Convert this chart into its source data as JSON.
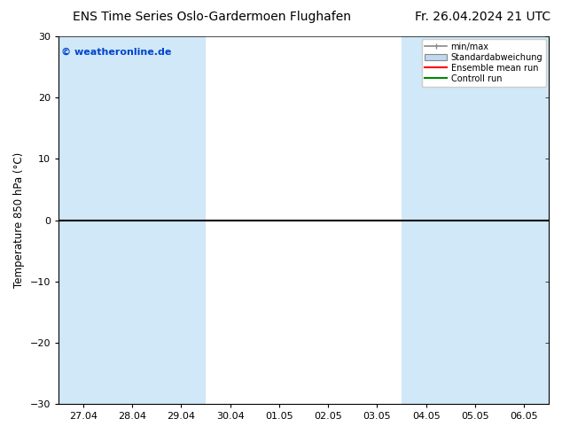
{
  "title_left": "ENS Time Series Oslo-Gardermoen Flughafen",
  "title_right": "Fr. 26.04.2024 21 UTC",
  "ylabel": "Temperature 850 hPa (°C)",
  "copyright": "© weatheronline.de",
  "ylim": [
    -30,
    30
  ],
  "yticks": [
    -30,
    -20,
    -10,
    0,
    10,
    20,
    30
  ],
  "x_labels": [
    "27.04",
    "28.04",
    "29.04",
    "30.04",
    "01.05",
    "02.05",
    "03.05",
    "04.05",
    "05.05",
    "06.05"
  ],
  "x_positions": [
    0,
    1,
    2,
    3,
    4,
    5,
    6,
    7,
    8,
    9
  ],
  "xlim": [
    -0.5,
    9.5
  ],
  "bg_color": "#ffffff",
  "plot_bg_color": "#ffffff",
  "band_color": "#d0e8f8",
  "band_positions": [
    0,
    1,
    2,
    7,
    8,
    9
  ],
  "legend_labels": [
    "min/max",
    "Standardabweichung",
    "Ensemble mean run",
    "Controll run"
  ],
  "zero_line_color": "#000000",
  "green_line_color": "#008800",
  "title_fontsize": 10,
  "label_fontsize": 8.5,
  "tick_fontsize": 8,
  "copyright_color": "#0044cc",
  "copyright_fontsize": 8
}
